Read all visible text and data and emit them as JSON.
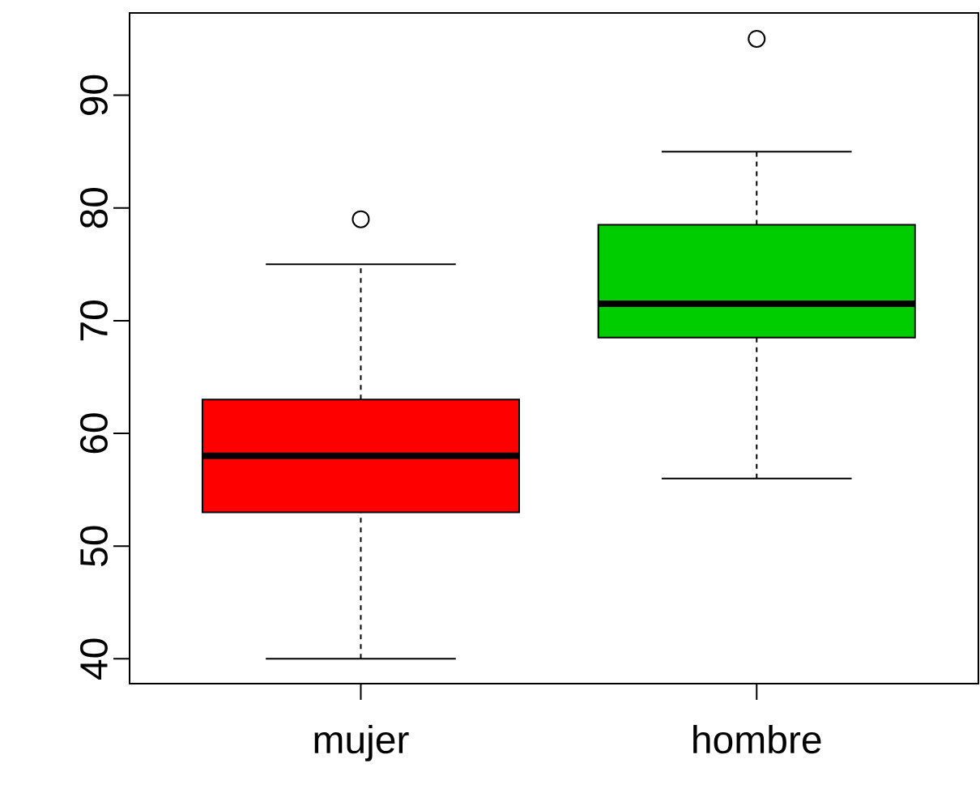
{
  "chart_data": {
    "type": "box",
    "categories": [
      "mujer",
      "hombre"
    ],
    "colors": [
      "#ff0000",
      "#00cd00"
    ],
    "boxes": [
      {
        "low": 40,
        "q1": 53,
        "median": 58,
        "q3": 63,
        "high": 75,
        "outliers": [
          79
        ]
      },
      {
        "low": 56,
        "q1": 68.5,
        "median": 71.5,
        "q3": 78.5,
        "high": 85,
        "outliers": [
          95
        ]
      }
    ],
    "ylim": [
      37.8,
      97.3
    ],
    "yticks": [
      40,
      50,
      60,
      70,
      80,
      90
    ]
  }
}
